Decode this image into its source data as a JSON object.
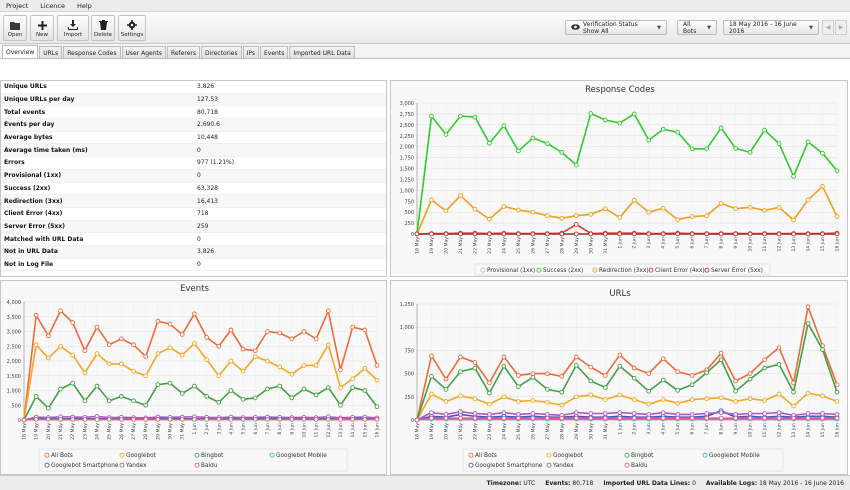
{
  "menu": [
    "Project",
    "Licence",
    "Help"
  ],
  "toolbar": {
    "open": "Open",
    "new": "New",
    "import": "Import",
    "delete": "Delete",
    "settings": "Settings",
    "verification": "Verification Status Show All",
    "bots": "All Bots",
    "date_range": "18 May 2016 - 16 June 2016"
  },
  "tabs": [
    "Overview",
    "URLs",
    "Response Codes",
    "User Agents",
    "Referers",
    "Directories",
    "IPs",
    "Events",
    "Imported URL Data"
  ],
  "stats": [
    {
      "k": "Unique URLs",
      "v": "3,826"
    },
    {
      "k": "Unique URLs per day",
      "v": "127.53"
    },
    {
      "k": "Total events",
      "v": "80,718"
    },
    {
      "k": "Events per day",
      "v": "2,690.6"
    },
    {
      "k": "Average bytes",
      "v": "10,448"
    },
    {
      "k": "Average time taken (ms)",
      "v": "0"
    },
    {
      "k": "Errors",
      "v": "977 (1.21%)"
    },
    {
      "k": "Provisional (1xx)",
      "v": "0"
    },
    {
      "k": "Success (2xx)",
      "v": "63,328"
    },
    {
      "k": "Redirection (3xx)",
      "v": "16,413"
    },
    {
      "k": "Client Error (4xx)",
      "v": "718"
    },
    {
      "k": "Server Error (5xx)",
      "v": "259"
    },
    {
      "k": "Matched with URL Data",
      "v": "0"
    },
    {
      "k": "Not in URL Data",
      "v": "3,826"
    },
    {
      "k": "Not in Log File",
      "v": "0"
    }
  ],
  "status": {
    "timezone_label": "Timezone:",
    "timezone": "UTC",
    "events_label": "Events:",
    "events": "80,718",
    "imported_label": "Imported URL Data Lines:",
    "imported": "0",
    "logs_label": "Available Logs:",
    "logs": "18 May 2016 - 16 June 2016"
  },
  "chart_data": [
    {
      "type": "line",
      "title": "Response Codes",
      "ylim": [
        0,
        3000
      ],
      "yticks": [
        0,
        250,
        500,
        750,
        1000,
        1250,
        1500,
        1750,
        2000,
        2250,
        2500,
        2750,
        3000
      ],
      "x": [
        "18 May",
        "19 May",
        "20 May",
        "21 May",
        "22 May",
        "23 May",
        "24 May",
        "25 May",
        "26 May",
        "27 May",
        "28 May",
        "29 May",
        "30 May",
        "31 May",
        "1 Jun",
        "2 Jun",
        "3 Jun",
        "4 Jun",
        "5 Jun",
        "6 Jun",
        "7 Jun",
        "8 Jun",
        "9 Jun",
        "10 Jun",
        "11 Jun",
        "12 Jun",
        "13 Jun",
        "14 Jun",
        "15 Jun",
        "16 Jun"
      ],
      "series": [
        {
          "name": "Provisional (1xx)",
          "color": "#bdbdbd",
          "values": [
            0,
            0,
            0,
            0,
            0,
            0,
            0,
            0,
            0,
            0,
            0,
            0,
            0,
            0,
            0,
            0,
            0,
            0,
            0,
            0,
            0,
            0,
            0,
            0,
            0,
            0,
            0,
            0,
            0,
            0
          ]
        },
        {
          "name": "Success (2xx)",
          "color": "#2ecc2e",
          "values": [
            0,
            2700,
            2280,
            2700,
            2680,
            2080,
            2480,
            1900,
            2200,
            2070,
            1870,
            1580,
            2760,
            2610,
            2540,
            2750,
            2150,
            2400,
            2330,
            1950,
            1950,
            2430,
            1960,
            1870,
            2380,
            2070,
            1320,
            2110,
            1850,
            1450
          ]
        },
        {
          "name": "Redirection (3xx)",
          "color": "#f0a020",
          "values": [
            0,
            780,
            530,
            880,
            570,
            340,
            630,
            550,
            500,
            420,
            360,
            420,
            450,
            580,
            380,
            770,
            500,
            590,
            330,
            400,
            420,
            700,
            580,
            610,
            540,
            610,
            320,
            780,
            1090,
            400
          ]
        },
        {
          "name": "Client Error (4xx)",
          "color": "#e53030",
          "values": [
            0,
            10,
            10,
            20,
            20,
            10,
            20,
            10,
            10,
            10,
            20,
            220,
            10,
            20,
            20,
            20,
            10,
            10,
            20,
            10,
            10,
            10,
            10,
            10,
            10,
            10,
            10,
            10,
            10,
            20
          ]
        },
        {
          "name": "Server Error (5xx)",
          "color": "#a83030",
          "values": [
            0,
            0,
            0,
            0,
            0,
            0,
            0,
            0,
            0,
            0,
            0,
            0,
            0,
            0,
            0,
            0,
            0,
            0,
            0,
            0,
            0,
            0,
            0,
            0,
            0,
            0,
            0,
            0,
            0,
            0
          ]
        }
      ]
    },
    {
      "type": "line",
      "title": "Events",
      "ylim": [
        0,
        4000
      ],
      "yticks": [
        0,
        500,
        1000,
        1500,
        2000,
        2500,
        3000,
        3500,
        4000
      ],
      "x": [
        "18 May",
        "19 May",
        "20 May",
        "21 May",
        "22 May",
        "23 May",
        "24 May",
        "25 May",
        "26 May",
        "27 May",
        "28 May",
        "29 May",
        "30 May",
        "31 May",
        "1 Jun",
        "2 Jun",
        "3 Jun",
        "4 Jun",
        "5 Jun",
        "6 Jun",
        "7 Jun",
        "8 Jun",
        "9 Jun",
        "10 Jun",
        "11 Jun",
        "12 Jun",
        "13 Jun",
        "14 Jun",
        "15 Jun",
        "16 Jun"
      ],
      "series": [
        {
          "name": "All Bots",
          "color": "#ef6a3a",
          "values": [
            0,
            3550,
            2850,
            3700,
            3300,
            2350,
            3150,
            2550,
            2750,
            2550,
            2150,
            3350,
            3250,
            2900,
            3600,
            2800,
            2500,
            3050,
            2400,
            2350,
            3000,
            2950,
            2750,
            3000,
            2750,
            3700,
            1700,
            3150,
            3050,
            1850
          ]
        },
        {
          "name": "Googlebot",
          "color": "#f5a623",
          "values": [
            0,
            2550,
            2100,
            2500,
            2200,
            1600,
            2250,
            1900,
            1900,
            1650,
            1500,
            2250,
            2450,
            2200,
            2600,
            2050,
            1500,
            2000,
            1650,
            2150,
            2000,
            1800,
            1550,
            1850,
            1850,
            2550,
            1100,
            1400,
            1750,
            1350
          ]
        },
        {
          "name": "Bingbot",
          "color": "#43a047",
          "values": [
            0,
            800,
            400,
            1050,
            1250,
            650,
            1150,
            650,
            800,
            650,
            500,
            1200,
            1250,
            900,
            1150,
            800,
            600,
            1000,
            700,
            750,
            1050,
            1150,
            750,
            1050,
            850,
            1100,
            500,
            1100,
            1000,
            450
          ]
        },
        {
          "name": "Googlebot Mobile",
          "color": "#4fa3d1",
          "values": [
            0,
            30,
            30,
            30,
            30,
            30,
            30,
            30,
            30,
            30,
            30,
            30,
            30,
            30,
            30,
            30,
            30,
            30,
            30,
            30,
            30,
            30,
            30,
            30,
            30,
            30,
            30,
            30,
            30,
            30
          ]
        },
        {
          "name": "Googlebot Smartphone",
          "color": "#3a5fc8",
          "values": [
            0,
            40,
            40,
            40,
            40,
            40,
            40,
            40,
            40,
            40,
            40,
            40,
            40,
            40,
            40,
            40,
            40,
            40,
            40,
            40,
            40,
            40,
            40,
            40,
            40,
            40,
            40,
            40,
            40,
            40
          ]
        },
        {
          "name": "Yandex",
          "color": "#b055c8",
          "values": [
            0,
            100,
            80,
            110,
            100,
            90,
            120,
            80,
            90,
            80,
            70,
            100,
            90,
            100,
            110,
            90,
            80,
            100,
            80,
            90,
            100,
            90,
            80,
            90,
            80,
            110,
            70,
            90,
            100,
            70
          ]
        },
        {
          "name": "Baidu",
          "color": "#e0607a",
          "values": [
            0,
            20,
            20,
            20,
            20,
            20,
            20,
            20,
            20,
            20,
            20,
            20,
            20,
            20,
            20,
            20,
            20,
            20,
            20,
            20,
            20,
            20,
            20,
            20,
            20,
            20,
            20,
            20,
            20,
            20
          ]
        }
      ]
    },
    {
      "type": "line",
      "title": "URLs",
      "ylim": [
        0,
        1250
      ],
      "yticks": [
        0,
        250,
        500,
        750,
        1000,
        1250
      ],
      "x": [
        "18 May",
        "19 May",
        "20 May",
        "21 May",
        "22 May",
        "23 May",
        "24 May",
        "25 May",
        "26 May",
        "27 May",
        "28 May",
        "29 May",
        "30 May",
        "31 May",
        "1 Jun",
        "2 Jun",
        "3 Jun",
        "4 Jun",
        "5 Jun",
        "6 Jun",
        "7 Jun",
        "8 Jun",
        "9 Jun",
        "10 Jun",
        "11 Jun",
        "12 Jun",
        "13 Jun",
        "14 Jun",
        "15 Jun",
        "16 Jun"
      ],
      "series": [
        {
          "name": "All Bots",
          "color": "#ef6a3a",
          "values": [
            0,
            690,
            440,
            680,
            620,
            400,
            680,
            480,
            500,
            500,
            470,
            680,
            570,
            480,
            700,
            560,
            500,
            660,
            520,
            480,
            540,
            720,
            420,
            500,
            650,
            780,
            400,
            1220,
            800,
            380
          ]
        },
        {
          "name": "Googlebot",
          "color": "#f5a623",
          "values": [
            0,
            280,
            200,
            260,
            230,
            170,
            250,
            200,
            210,
            190,
            160,
            250,
            270,
            220,
            270,
            220,
            170,
            220,
            180,
            220,
            230,
            240,
            200,
            230,
            210,
            280,
            150,
            290,
            260,
            200
          ]
        },
        {
          "name": "Bingbot",
          "color": "#43a047",
          "values": [
            0,
            470,
            330,
            520,
            560,
            290,
            580,
            360,
            460,
            330,
            300,
            590,
            420,
            350,
            580,
            450,
            310,
            430,
            320,
            380,
            510,
            650,
            310,
            440,
            560,
            600,
            300,
            1040,
            760,
            300
          ]
        },
        {
          "name": "Googlebot Mobile",
          "color": "#4fa3d1",
          "values": [
            0,
            10,
            10,
            10,
            10,
            10,
            10,
            10,
            10,
            10,
            10,
            10,
            10,
            10,
            10,
            10,
            10,
            10,
            10,
            10,
            10,
            10,
            10,
            10,
            10,
            10,
            10,
            10,
            10,
            10
          ]
        },
        {
          "name": "Googlebot Smartphone",
          "color": "#3a5fc8",
          "values": [
            0,
            40,
            30,
            60,
            40,
            30,
            40,
            30,
            40,
            30,
            30,
            40,
            30,
            30,
            40,
            30,
            30,
            40,
            30,
            30,
            40,
            100,
            30,
            40,
            30,
            40,
            30,
            40,
            40,
            30
          ]
        },
        {
          "name": "Yandex",
          "color": "#b055c8",
          "values": [
            0,
            80,
            60,
            90,
            70,
            60,
            80,
            60,
            70,
            60,
            50,
            80,
            70,
            70,
            80,
            70,
            60,
            80,
            60,
            60,
            70,
            80,
            60,
            70,
            70,
            80,
            50,
            70,
            70,
            60
          ]
        },
        {
          "name": "Baidu",
          "color": "#e0607a",
          "values": [
            0,
            20,
            20,
            20,
            20,
            20,
            20,
            20,
            20,
            20,
            20,
            20,
            20,
            20,
            20,
            20,
            20,
            20,
            20,
            20,
            20,
            20,
            20,
            20,
            20,
            20,
            20,
            20,
            20,
            20
          ]
        }
      ]
    }
  ]
}
